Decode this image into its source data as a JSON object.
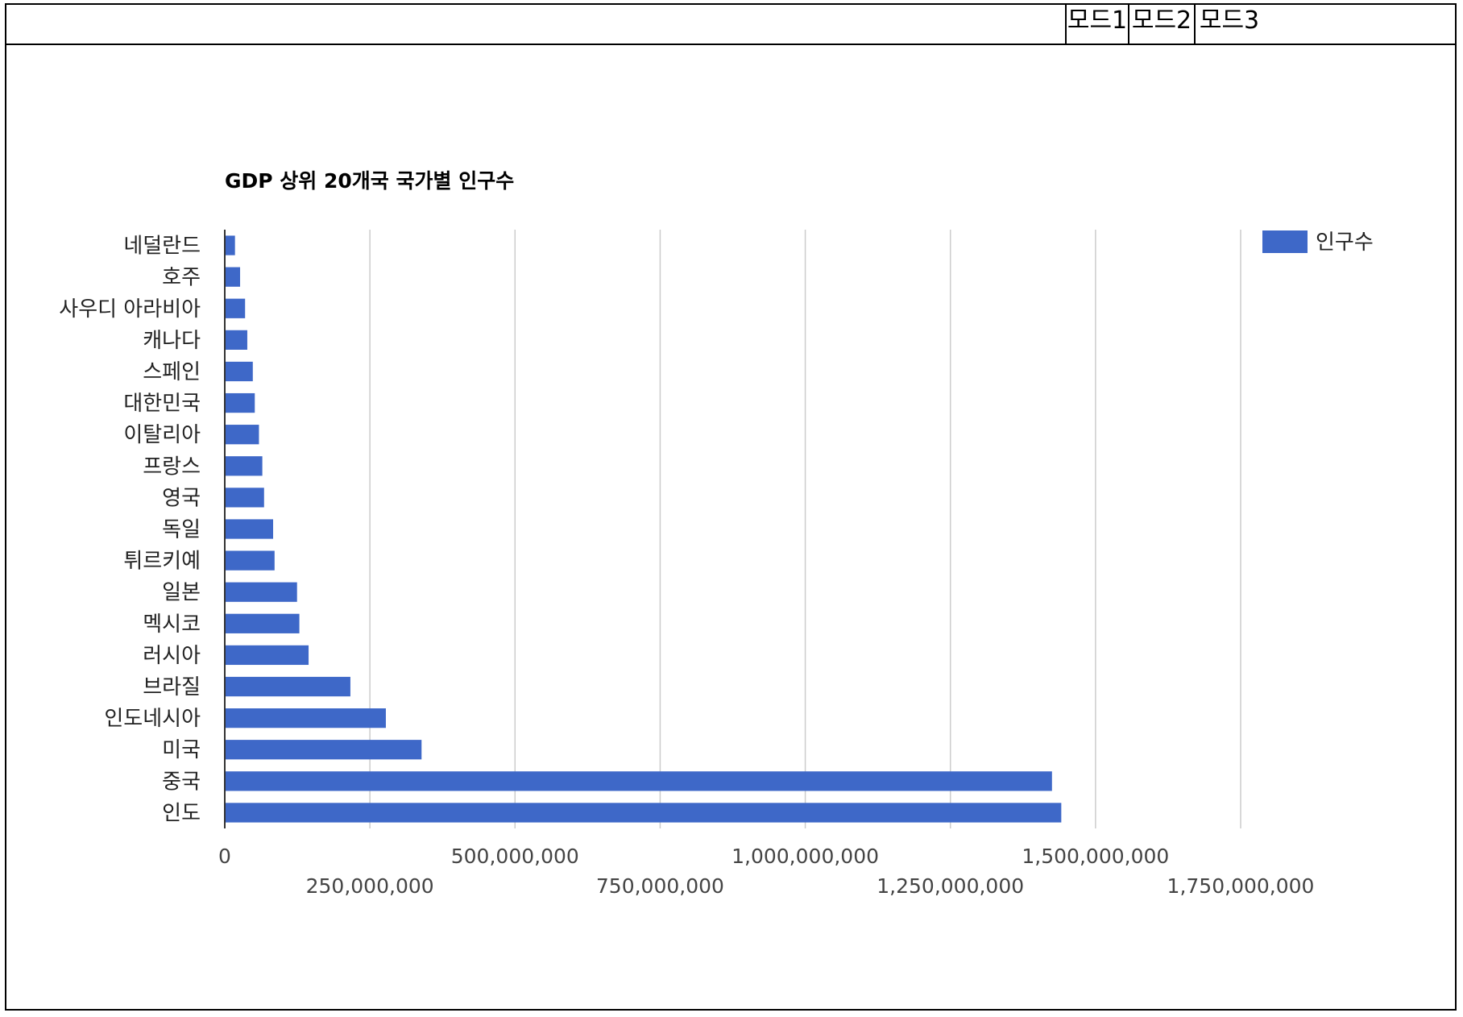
{
  "toolbar": {
    "modes": [
      "모드1",
      "모드2",
      "모드3"
    ]
  },
  "colors": {
    "bar": "#3e68c8",
    "grid": "#cccccc",
    "axis": "#333333"
  },
  "chart_data": {
    "type": "bar",
    "orientation": "horizontal",
    "title": "GDP 상위 20개국 국가별 인구수",
    "xlabel": "",
    "ylabel": "",
    "categories": [
      "네덜란드",
      "호주",
      "사우디 아라비아",
      "캐나다",
      "스페인",
      "대한민국",
      "이탈리아",
      "프랑스",
      "영국",
      "독일",
      "튀르키예",
      "일본",
      "멕시코",
      "러시아",
      "브라질",
      "인도네시아",
      "미국",
      "중국",
      "인도"
    ],
    "series": [
      {
        "name": "인구수",
        "values": [
          17600000,
          26400000,
          35000000,
          38800000,
          48300000,
          51700000,
          58900000,
          64700000,
          67700000,
          83300000,
          85800000,
          124500000,
          128500000,
          144400000,
          216400000,
          277500000,
          339000000,
          1425000000,
          1441000000
        ]
      }
    ],
    "xlim": [
      0,
      1750000000
    ],
    "xticks": [
      "0",
      "250,000,000",
      "500,000,000",
      "750,000,000",
      "1,000,000,000",
      "1,250,000,000",
      "1,500,000,000",
      "1,750,000,000"
    ],
    "grid": true,
    "legend": "top-right"
  }
}
